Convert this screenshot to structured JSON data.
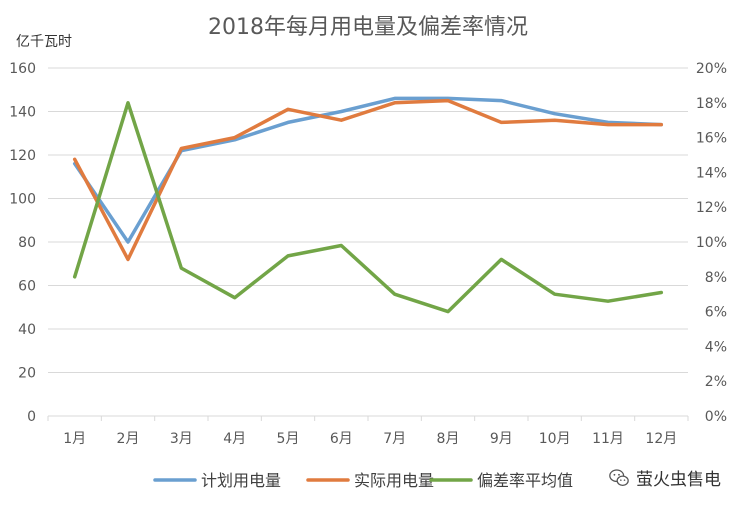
{
  "chart_data": {
    "type": "line",
    "title": "2018年每月用电量及偏差率情况",
    "ylabel": "亿千瓦时",
    "categories": [
      "1月",
      "2月",
      "3月",
      "4月",
      "5月",
      "6月",
      "7月",
      "8月",
      "9月",
      "10月",
      "11月",
      "12月"
    ],
    "ylim": [
      0,
      160
    ],
    "yticks": [
      "0",
      "20",
      "40",
      "60",
      "80",
      "100",
      "120",
      "140",
      "160"
    ],
    "y2lim": [
      0,
      20
    ],
    "y2ticks": [
      "0%",
      "2%",
      "4%",
      "6%",
      "8%",
      "10%",
      "12%",
      "14%",
      "16%",
      "18%",
      "20%"
    ],
    "grid": true,
    "legend_position": "bottom",
    "series": [
      {
        "name": "计划用电量",
        "axis": "left",
        "color": "#6A9FD0",
        "values": [
          116,
          80,
          122,
          127,
          135,
          140,
          146,
          146,
          145,
          139,
          135,
          134
        ]
      },
      {
        "name": "实际用电量",
        "axis": "left",
        "color": "#E07B3F",
        "values": [
          118,
          72,
          123,
          128,
          141,
          136,
          144,
          145,
          135,
          136,
          134,
          134
        ]
      },
      {
        "name": "偏差率平均值",
        "axis": "right",
        "color": "#72A547",
        "values": [
          8.0,
          18.0,
          8.5,
          6.8,
          9.2,
          9.8,
          7.0,
          6.0,
          9.0,
          7.0,
          6.6,
          7.1
        ]
      }
    ]
  },
  "watermark": {
    "text": "萤火虫售电",
    "icon": "wechat-icon"
  }
}
